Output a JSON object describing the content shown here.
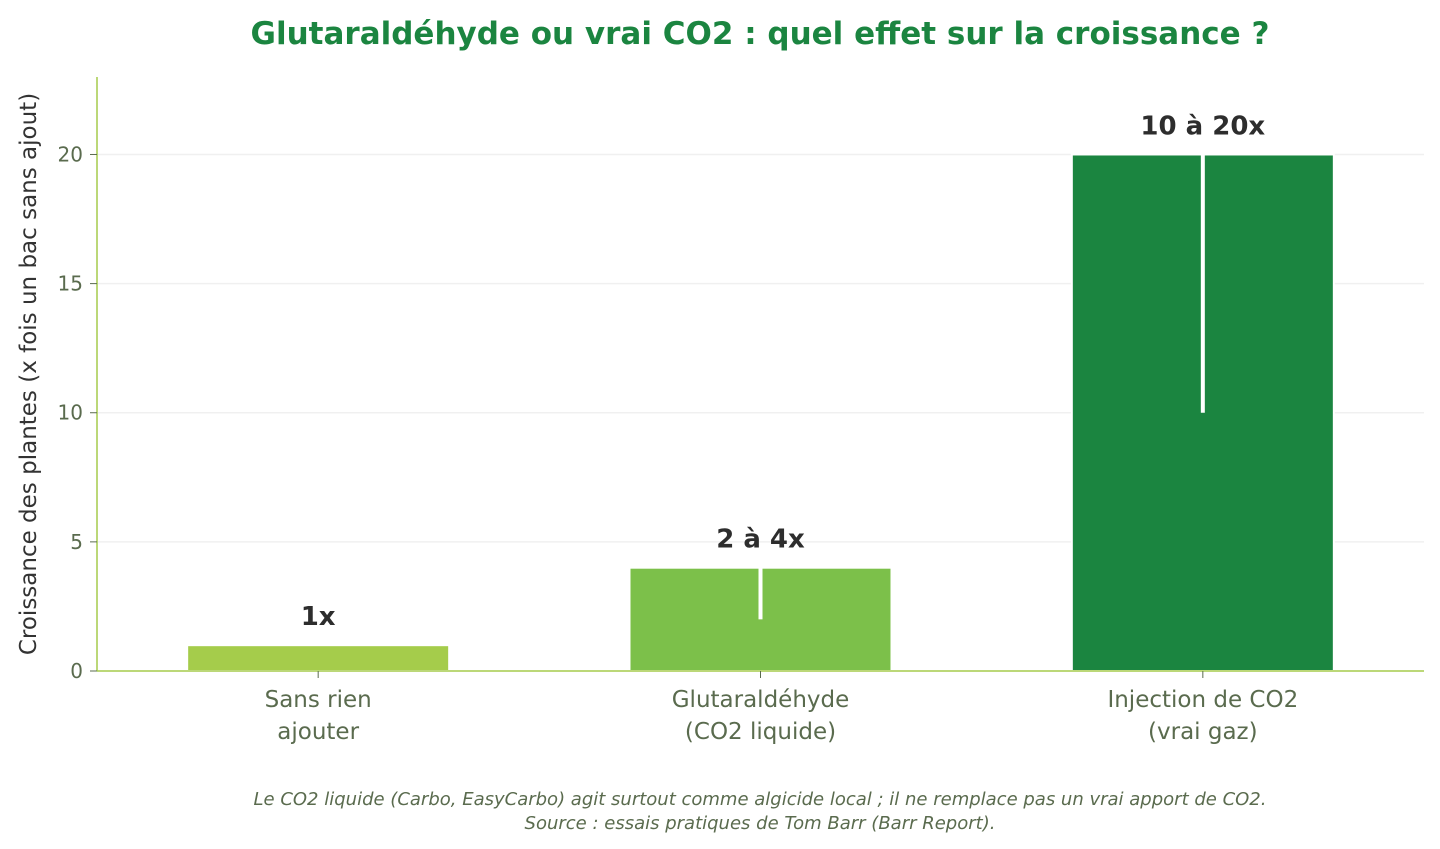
{
  "chart_data": {
    "type": "bar",
    "title": "Glutaraldéhyde ou vrai CO2 : quel effet sur la croissance ?",
    "ylabel": "Croissance des plantes (x fois un bac sans ajout)",
    "xlabel": "",
    "ylim": [
      0,
      23
    ],
    "yticks": [
      0,
      5,
      10,
      15,
      20
    ],
    "grid": true,
    "categories": [
      [
        "Sans rien",
        "ajouter"
      ],
      [
        "Glutaraldéhyde",
        "(CO2 liquide)"
      ],
      [
        "Injection de CO2",
        "(vrai gaz)"
      ]
    ],
    "ranges": [
      [
        1,
        1
      ],
      [
        2,
        4
      ],
      [
        10,
        20
      ]
    ],
    "values": [
      1,
      4,
      20
    ],
    "data_labels": [
      "1x",
      "2 à 4x",
      "10 à 20x"
    ],
    "colors": [
      "#a5cc4b",
      "#7cc04a",
      "#1b8540"
    ]
  },
  "notes": [
    "Le CO2 liquide (Carbo, EasyCarbo) agit surtout comme algicide local ; il ne remplace pas un vrai apport de CO2.",
    "Source : essais pratiques de Tom Barr (Barr Report)."
  ],
  "colors": {
    "title": "#1b8540",
    "axis": "#a5cc4b",
    "grid": "#f0f0f0"
  }
}
